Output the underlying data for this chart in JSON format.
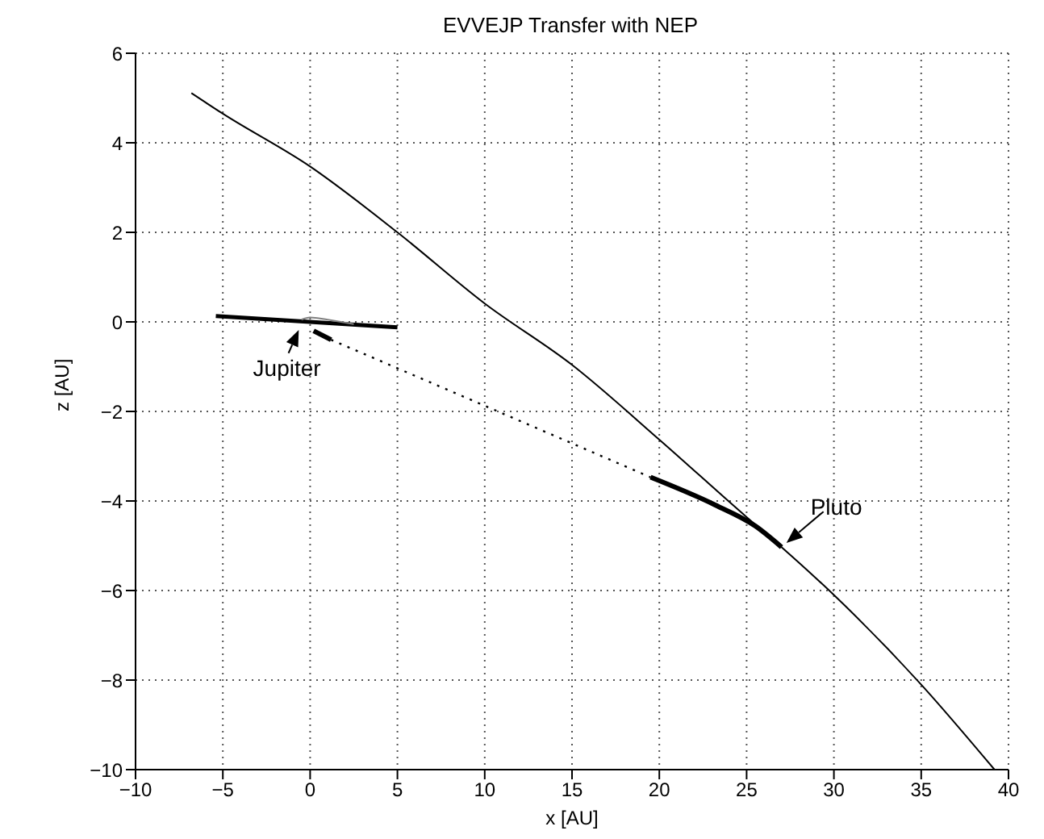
{
  "chart_data": {
    "type": "line",
    "title": "EVVEJP Transfer with NEP",
    "xlabel": "x [AU]",
    "ylabel": "z [AU]",
    "xlim": [
      -10,
      40
    ],
    "xticks": [
      -10,
      -5,
      0,
      5,
      10,
      15,
      20,
      25,
      30,
      35,
      40
    ],
    "ylim": [
      -10,
      6
    ],
    "yticks": [
      -10,
      -8,
      -6,
      -4,
      -2,
      0,
      2,
      4,
      6
    ],
    "grid": true,
    "marker": "none",
    "series": [
      {
        "color": "#000000",
        "x": [
          -6.8,
          -5,
          0,
          5,
          10,
          15,
          20,
          25,
          27,
          30,
          35,
          39.2
        ],
        "values": [
          5.11,
          4.65,
          3.47,
          2.0,
          0.41,
          -0.96,
          -2.63,
          -4.36,
          -5.03,
          -6.1,
          -8.1,
          -10
        ]
      },
      {
        "color": "#000000",
        "x": [
          19.5,
          23.2,
          25.5,
          27
        ],
        "values": [
          -3.47,
          -4.09,
          -4.56,
          -5.03
        ]
      },
      {
        "color": "#000000",
        "line_style": "dotted",
        "x": [
          1.2,
          10.1,
          19.5
        ],
        "values": [
          -0.4,
          -1.89,
          -3.47
        ]
      },
      {
        "color": "#000000",
        "x": [
          0.2,
          1.2
        ],
        "values": [
          -0.2,
          -0.4
        ]
      },
      {
        "color": "#000000",
        "x": [
          -5.4,
          5
        ],
        "values": [
          0.13,
          -0.12
        ]
      },
      {
        "color": "#808080",
        "x": [
          -0.5,
          0,
          1,
          2.5
        ],
        "values": [
          0.05,
          0.1,
          0.05,
          -0.05
        ]
      }
    ],
    "annotations": [
      {
        "text": "Jupiter",
        "x": -0.5,
        "y": -0.05
      },
      {
        "text": "Pluto",
        "x": 27,
        "y": -5.03
      }
    ]
  }
}
